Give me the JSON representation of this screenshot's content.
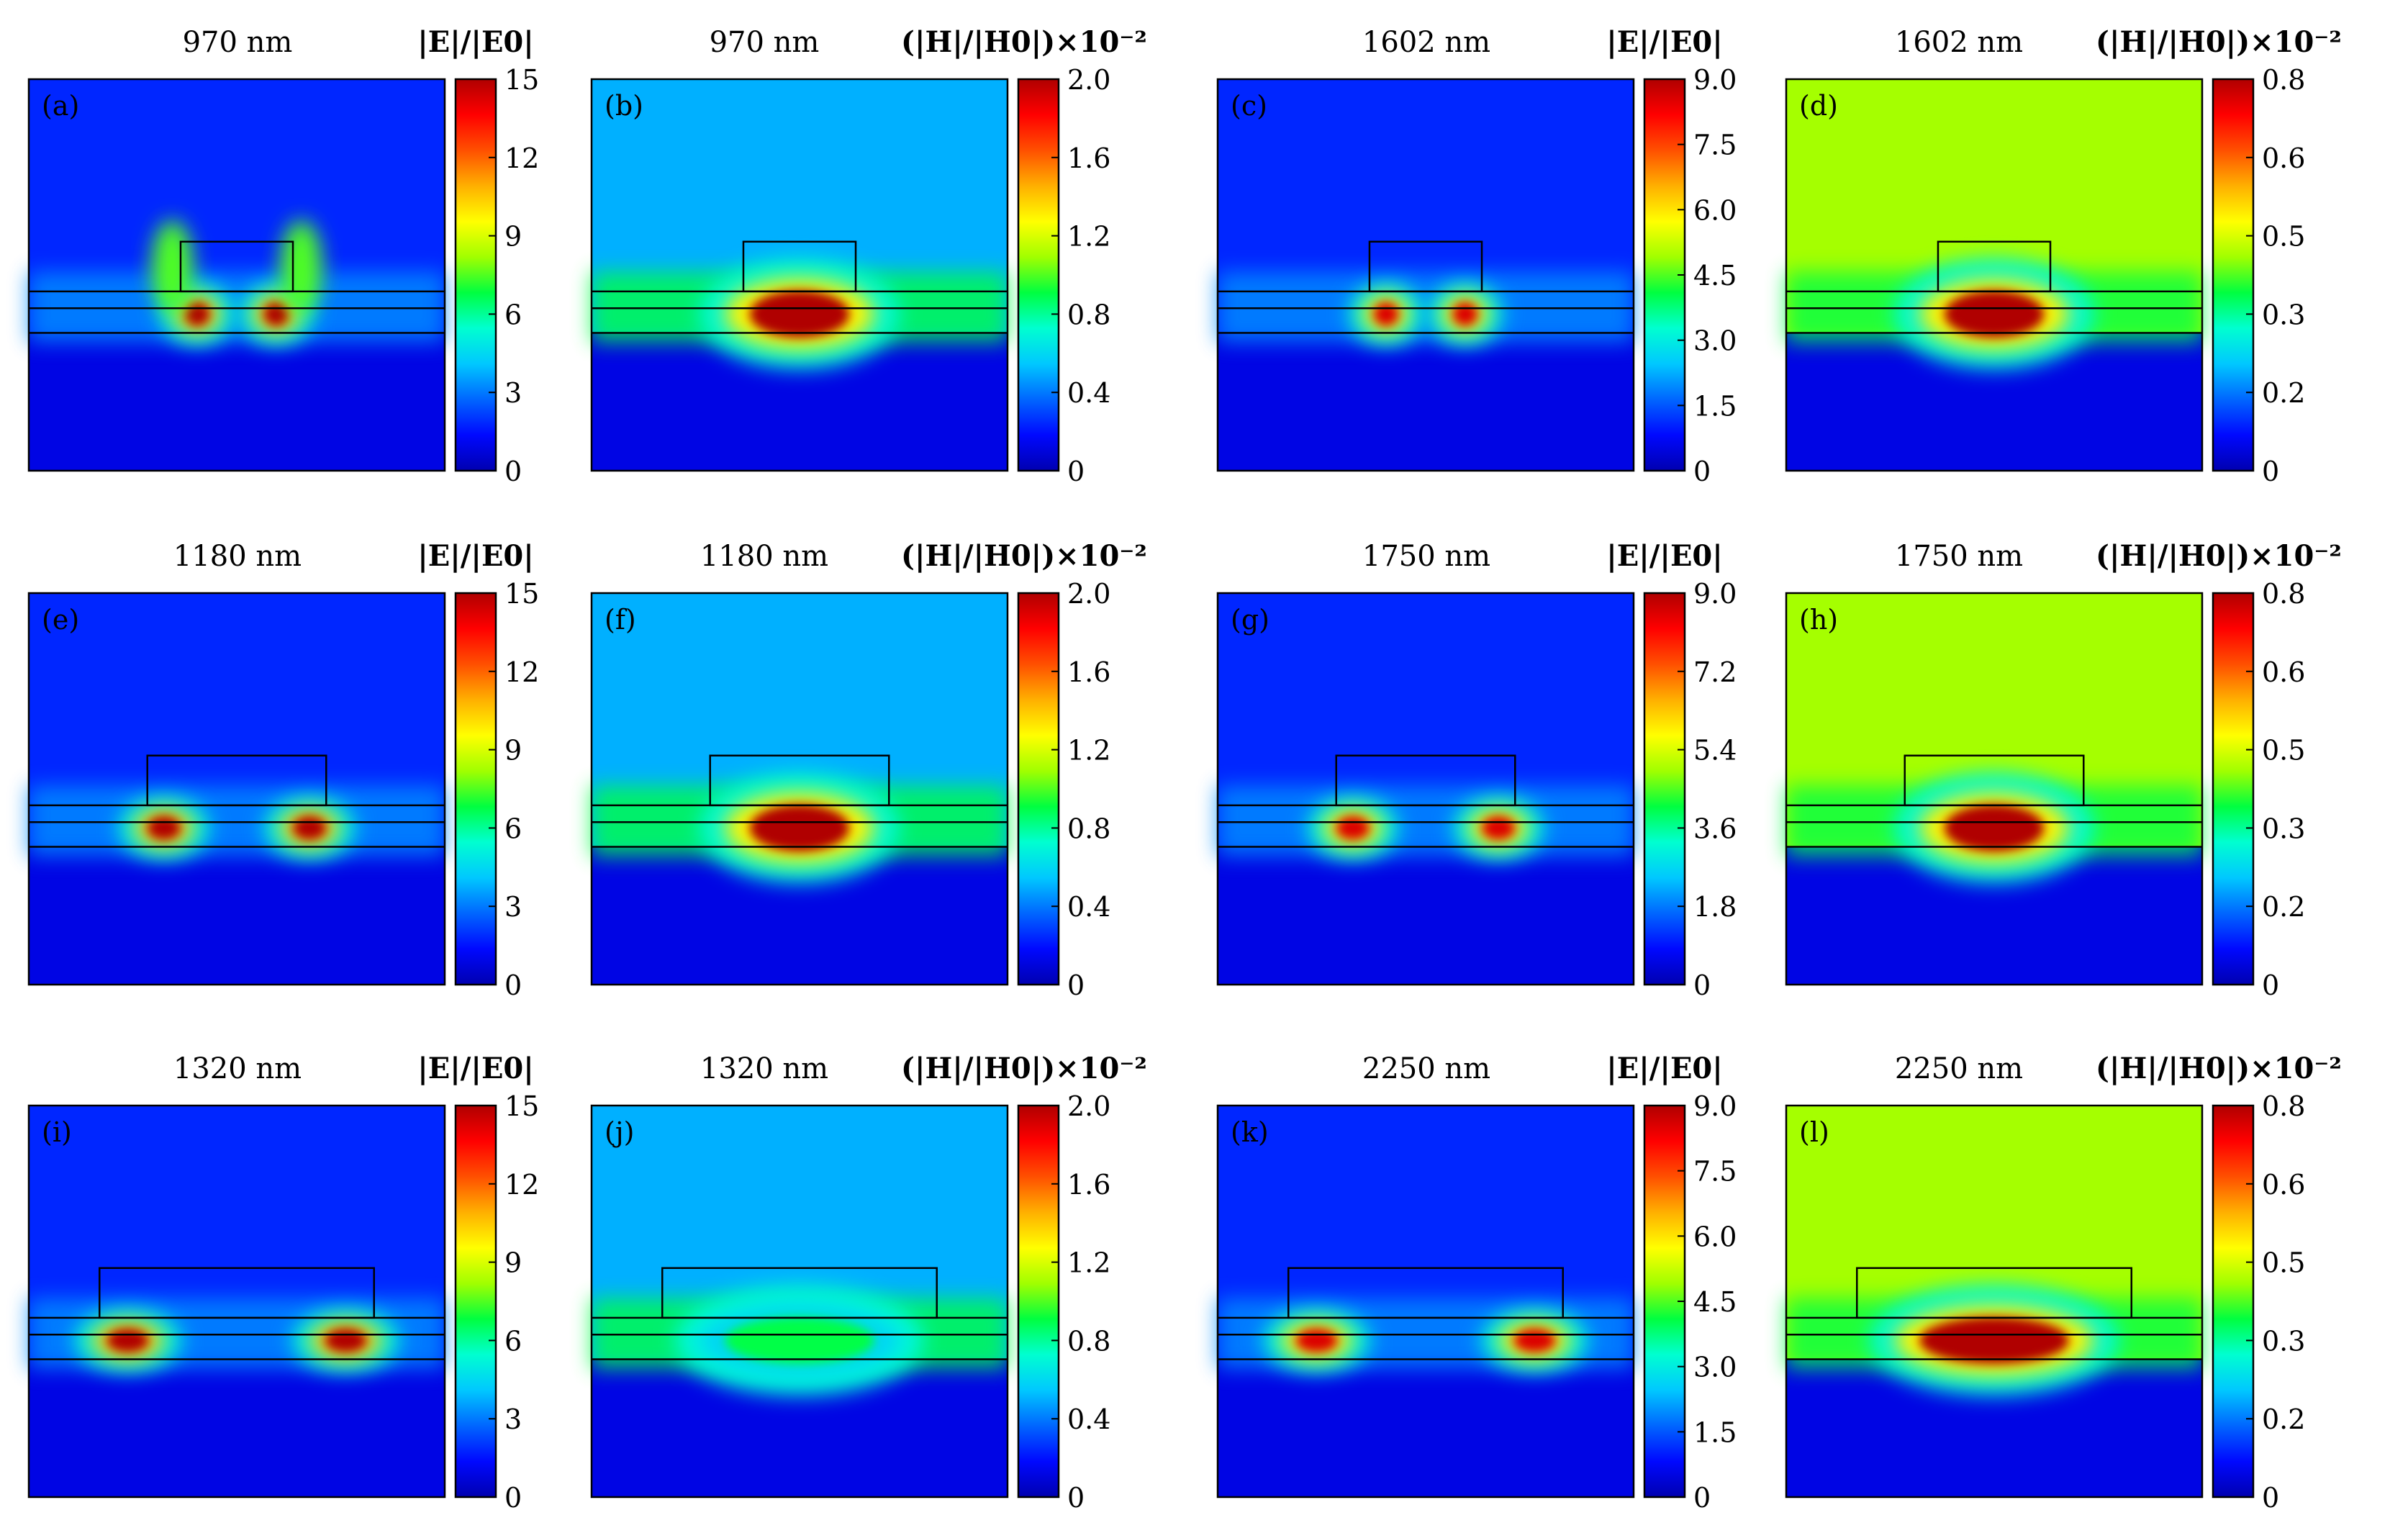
{
  "figure": {
    "e_field_title": "|E|/|E0|",
    "h_field_title": "(|H|/|H0|)×10⁻²",
    "palette": [
      "#0000b0",
      "#0008ff",
      "#0066ff",
      "#00c8ff",
      "#00ffd0",
      "#00ff40",
      "#a0ff00",
      "#ffff00",
      "#ffb000",
      "#ff5000",
      "#ff0000",
      "#b00000"
    ]
  },
  "chart_data": [
    {
      "panel": "(a)",
      "type": "heatmap",
      "field": "E",
      "title": "970 nm",
      "colorbar_title": "|E|/|E0|",
      "range": [
        0,
        15
      ],
      "colorbar_ticks": [
        "0",
        "3",
        "6",
        "9",
        "12",
        "15"
      ]
    },
    {
      "panel": "(b)",
      "type": "heatmap",
      "field": "H",
      "title": "970 nm",
      "colorbar_title": "(|H|/|H0|)×10⁻²",
      "range": [
        0,
        2.0
      ],
      "colorbar_ticks": [
        "0",
        "0.4",
        "0.8",
        "1.2",
        "1.6",
        "2.0"
      ]
    },
    {
      "panel": "(c)",
      "type": "heatmap",
      "field": "E",
      "title": "1602 nm",
      "colorbar_title": "|E|/|E0|",
      "range": [
        0,
        9.0
      ],
      "colorbar_ticks": [
        "0",
        "1.5",
        "3.0",
        "4.5",
        "6.0",
        "7.5",
        "9.0"
      ]
    },
    {
      "panel": "(d)",
      "type": "heatmap",
      "field": "H",
      "title": "1602 nm",
      "colorbar_title": "(|H|/|H0|)×10⁻²",
      "range": [
        0,
        0.8
      ],
      "colorbar_ticks": [
        "0",
        "0.2",
        "0.3",
        "0.5",
        "0.6",
        "0.8"
      ]
    },
    {
      "panel": "(e)",
      "type": "heatmap",
      "field": "E",
      "title": "1180 nm",
      "colorbar_title": "|E|/|E0|",
      "range": [
        0,
        15
      ],
      "colorbar_ticks": [
        "0",
        "3",
        "6",
        "9",
        "12",
        "15"
      ]
    },
    {
      "panel": "(f)",
      "type": "heatmap",
      "field": "H",
      "title": "1180 nm",
      "colorbar_title": "(|H|/|H0|)×10⁻²",
      "range": [
        0,
        2.0
      ],
      "colorbar_ticks": [
        "0",
        "0.4",
        "0.8",
        "1.2",
        "1.6",
        "2.0"
      ]
    },
    {
      "panel": "(g)",
      "type": "heatmap",
      "field": "E",
      "title": "1750 nm",
      "colorbar_title": "|E|/|E0|",
      "range": [
        0,
        9.0
      ],
      "colorbar_ticks": [
        "0",
        "1.8",
        "3.6",
        "5.4",
        "7.2",
        "9.0"
      ]
    },
    {
      "panel": "(h)",
      "type": "heatmap",
      "field": "H",
      "title": "1750 nm",
      "colorbar_title": "(|H|/|H0|)×10⁻²",
      "range": [
        0,
        0.8
      ],
      "colorbar_ticks": [
        "0",
        "0.2",
        "0.3",
        "0.5",
        "0.6",
        "0.8"
      ]
    },
    {
      "panel": "(i)",
      "type": "heatmap",
      "field": "E",
      "title": "1320 nm",
      "colorbar_title": "|E|/|E0|",
      "range": [
        0,
        15
      ],
      "colorbar_ticks": [
        "0",
        "3",
        "6",
        "9",
        "12",
        "15"
      ]
    },
    {
      "panel": "(j)",
      "type": "heatmap",
      "field": "H",
      "title": "1320 nm",
      "colorbar_title": "(|H|/|H0|)×10⁻²",
      "range": [
        0,
        2.0
      ],
      "colorbar_ticks": [
        "0",
        "0.4",
        "0.8",
        "1.2",
        "1.6",
        "2.0"
      ]
    },
    {
      "panel": "(k)",
      "type": "heatmap",
      "field": "E",
      "title": "2250 nm",
      "colorbar_title": "|E|/|E0|",
      "range": [
        0,
        9.0
      ],
      "colorbar_ticks": [
        "0",
        "1.5",
        "3.0",
        "4.5",
        "6.0",
        "7.5",
        "9.0"
      ]
    },
    {
      "panel": "(l)",
      "type": "heatmap",
      "field": "H",
      "title": "2250 nm",
      "colorbar_title": "(|H|/|H0|)×10⁻²",
      "range": [
        0,
        0.8
      ],
      "colorbar_ticks": [
        "0",
        "0.2",
        "0.3",
        "0.5",
        "0.6",
        "0.8"
      ]
    }
  ]
}
